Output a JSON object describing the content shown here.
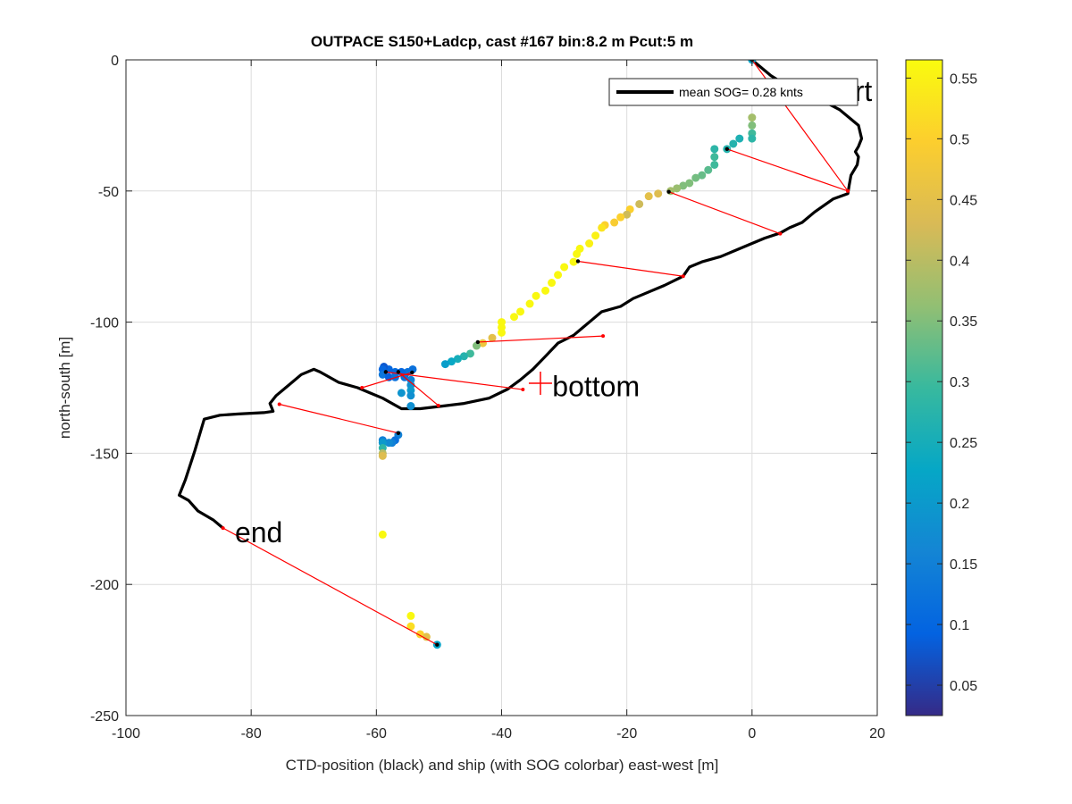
{
  "chart_data": {
    "type": "scatter",
    "title": "OUTPACE S150+Ladcp, cast #167 bin:8.2 m  Pcut:5 m",
    "xlabel": "CTD-position (black) and ship (with SOG colorbar) east-west [m]",
    "ylabel": "north-south [m]",
    "xlim": [
      -100,
      20
    ],
    "ylim": [
      -250,
      0
    ],
    "x_ticks": [
      -100,
      -80,
      -60,
      -40,
      -20,
      0,
      20
    ],
    "y_ticks": [
      -250,
      -200,
      -150,
      -100,
      -50,
      0
    ],
    "grid": true,
    "legend": {
      "label": "mean SOG=  0.28 knts",
      "position": "top-right"
    },
    "annotations": [
      {
        "text": "rt",
        "x": 16.4,
        "y": -12
      },
      {
        "text": "bottom",
        "x": -31.9,
        "y": -124.5
      },
      {
        "text": "end",
        "x": -82.6,
        "y": -180.2
      }
    ],
    "colorbar": {
      "range": [
        0.025,
        0.565
      ],
      "ticks": [
        0.05,
        0.1,
        0.15,
        0.2,
        0.25,
        0.3,
        0.35,
        0.4,
        0.45,
        0.5,
        0.55
      ],
      "colormap": [
        "#352a87",
        "#0363e1",
        "#1485d4",
        "#06a7c6",
        "#38b99e",
        "#92bf73",
        "#d9ba56",
        "#fcce2e",
        "#f9fb0e"
      ]
    },
    "ctd_track": [
      [
        0,
        0
      ],
      [
        3,
        -6
      ],
      [
        7,
        -12
      ],
      [
        10,
        -14
      ],
      [
        14,
        -19
      ],
      [
        17,
        -25
      ],
      [
        17.5,
        -30
      ],
      [
        17,
        -33
      ],
      [
        16.5,
        -35
      ],
      [
        17,
        -37
      ],
      [
        16.8,
        -40
      ],
      [
        15.8,
        -44
      ],
      [
        15.5,
        -48
      ],
      [
        15.3,
        -51
      ],
      [
        13,
        -53
      ],
      [
        10,
        -58
      ],
      [
        8,
        -62
      ],
      [
        6,
        -64
      ],
      [
        4.5,
        -66
      ],
      [
        2,
        -68
      ],
      [
        0,
        -70
      ],
      [
        -2,
        -72
      ],
      [
        -5,
        -75
      ],
      [
        -8,
        -77
      ],
      [
        -10,
        -79
      ],
      [
        -11,
        -82.5
      ],
      [
        -14,
        -86
      ],
      [
        -17,
        -89
      ],
      [
        -19,
        -91
      ],
      [
        -21,
        -94
      ],
      [
        -24,
        -96
      ],
      [
        -25.5,
        -99
      ],
      [
        -27,
        -102
      ],
      [
        -28.5,
        -105
      ],
      [
        -31,
        -108
      ],
      [
        -33,
        -113
      ],
      [
        -35,
        -118
      ],
      [
        -37,
        -122
      ],
      [
        -39,
        -125.5
      ],
      [
        -42,
        -129
      ],
      [
        -46,
        -131
      ],
      [
        -49.5,
        -132
      ],
      [
        -53,
        -133
      ],
      [
        -56,
        -133
      ],
      [
        -59,
        -129
      ],
      [
        -61,
        -127
      ],
      [
        -63,
        -125
      ],
      [
        -66,
        -123
      ],
      [
        -69,
        -119
      ],
      [
        -70,
        -118
      ],
      [
        -72,
        -120
      ],
      [
        -74,
        -124
      ],
      [
        -76,
        -128
      ],
      [
        -77,
        -131
      ],
      [
        -76.5,
        -134
      ],
      [
        -78,
        -134.5
      ],
      [
        -82,
        -135
      ],
      [
        -85,
        -135.5
      ],
      [
        -87.5,
        -137
      ],
      [
        -89,
        -149
      ],
      [
        -90.5,
        -160
      ],
      [
        -91.5,
        -166
      ],
      [
        -90,
        -168
      ],
      [
        -88.5,
        -172
      ],
      [
        -86,
        -175.5
      ],
      [
        -84.5,
        -178.5
      ]
    ],
    "ship_track": [
      [
        0,
        0,
        0.22
      ],
      [
        0,
        -22,
        0.38
      ],
      [
        0,
        -25,
        0.35
      ],
      [
        0,
        -28,
        0.3
      ],
      [
        0,
        -30,
        0.28
      ],
      [
        -2,
        -30,
        0.26
      ],
      [
        -3,
        -32,
        0.27
      ],
      [
        -4,
        -34,
        0.27
      ],
      [
        -6,
        -34,
        0.28
      ],
      [
        -6,
        -37,
        0.3
      ],
      [
        -6,
        -40,
        0.3
      ],
      [
        -7,
        -42,
        0.32
      ],
      [
        -8,
        -44,
        0.33
      ],
      [
        -9,
        -45,
        0.34
      ],
      [
        -10,
        -47,
        0.35
      ],
      [
        -11,
        -48,
        0.35
      ],
      [
        -12,
        -49,
        0.37
      ],
      [
        -13,
        -50,
        0.38
      ],
      [
        -15,
        -51,
        0.44
      ],
      [
        -16.5,
        -52,
        0.45
      ],
      [
        -18,
        -55,
        0.42
      ],
      [
        -19.5,
        -57,
        0.5
      ],
      [
        -20,
        -59,
        0.42
      ],
      [
        -21,
        -60,
        0.5
      ],
      [
        -22,
        -62,
        0.49
      ],
      [
        -23.5,
        -63,
        0.5
      ],
      [
        -24,
        -64,
        0.53
      ],
      [
        -25,
        -67,
        0.55
      ],
      [
        -26,
        -70,
        0.55
      ],
      [
        -27.5,
        -72,
        0.56
      ],
      [
        -28,
        -74,
        0.56
      ],
      [
        -28.5,
        -77,
        0.56
      ],
      [
        -30,
        -79,
        0.56
      ],
      [
        -31,
        -82,
        0.56
      ],
      [
        -32,
        -85,
        0.56
      ],
      [
        -33,
        -88,
        0.56
      ],
      [
        -34.5,
        -90,
        0.56
      ],
      [
        -35.5,
        -93,
        0.56
      ],
      [
        -37,
        -96,
        0.56
      ],
      [
        -38,
        -98,
        0.56
      ],
      [
        -40,
        -100,
        0.56
      ],
      [
        -40,
        -102,
        0.56
      ],
      [
        -40,
        -104,
        0.56
      ],
      [
        -41.5,
        -106,
        0.45
      ],
      [
        -43,
        -108,
        0.47
      ],
      [
        -44,
        -109,
        0.35
      ],
      [
        -45,
        -112,
        0.3
      ],
      [
        -46,
        -113,
        0.27
      ],
      [
        -47,
        -114,
        0.25
      ],
      [
        -48,
        -115,
        0.23
      ],
      [
        -49,
        -116,
        0.21
      ],
      [
        -54.2,
        -118,
        0.12
      ],
      [
        -55,
        -119,
        0.12
      ],
      [
        -56,
        -119,
        0.1
      ],
      [
        -57,
        -119,
        0.11
      ],
      [
        -58,
        -118,
        0.1
      ],
      [
        -58.8,
        -117,
        0.08
      ],
      [
        -59,
        -118,
        0.1
      ],
      [
        -59,
        -120,
        0.13
      ],
      [
        -58,
        -121,
        0.09
      ],
      [
        -57,
        -121,
        0.12
      ],
      [
        -55.5,
        -121,
        0.12
      ],
      [
        -54.5,
        -122,
        0.15
      ],
      [
        -54.5,
        -124,
        0.18
      ],
      [
        -54.5,
        -126,
        0.2
      ],
      [
        -56,
        -127,
        0.19
      ],
      [
        -54.5,
        -128,
        0.18
      ],
      [
        -54.5,
        -132,
        0.18
      ],
      [
        -56.5,
        -143,
        0.15
      ],
      [
        -57,
        -145,
        0.12
      ],
      [
        -57.5,
        -146,
        0.15
      ],
      [
        -58,
        -146,
        0.17
      ],
      [
        -59,
        -145,
        0.15
      ],
      [
        -59,
        -146,
        0.2
      ],
      [
        -59,
        -148,
        0.28
      ],
      [
        -59,
        -150,
        0.4
      ],
      [
        -59,
        -151,
        0.44
      ],
      [
        -59,
        -181,
        0.56
      ],
      [
        -54.5,
        -212,
        0.56
      ],
      [
        -54.5,
        -216,
        0.52
      ],
      [
        -53,
        -219,
        0.5
      ],
      [
        -52,
        -220,
        0.45
      ],
      [
        -50.3,
        -223,
        0.22
      ]
    ],
    "connectors": [
      [
        [
          0,
          0
        ],
        [
          15.3,
          -50
        ]
      ],
      [
        [
          -4,
          -34
        ],
        [
          15.3,
          -50
        ]
      ],
      [
        [
          -13.3,
          -50.3
        ],
        [
          4.5,
          -66.3
        ]
      ],
      [
        [
          -27.8,
          -76.8
        ],
        [
          -11,
          -82.5
        ]
      ],
      [
        [
          -43.8,
          -107.6
        ],
        [
          -23.8,
          -105.3
        ]
      ],
      [
        [
          -58.5,
          -119
        ],
        [
          -36.6,
          -125.7
        ]
      ],
      [
        [
          -56.5,
          -119
        ],
        [
          -50.1,
          -131.8
        ]
      ],
      [
        [
          -54.3,
          -119.2
        ],
        [
          -62.3,
          -125
        ]
      ],
      [
        [
          -56.5,
          -142.3
        ],
        [
          -75.5,
          -131.3
        ]
      ],
      [
        [
          -50.3,
          -223
        ],
        [
          -84.5,
          -178.5
        ]
      ]
    ]
  }
}
